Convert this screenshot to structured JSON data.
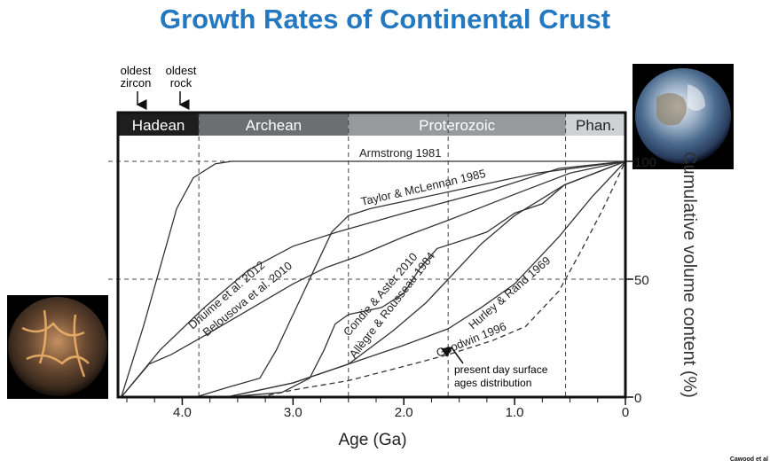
{
  "title": "Growth Rates of Continental Crust",
  "credit": "Cawood et al",
  "annotations": {
    "oldest_zircon": [
      "oldest",
      "zircon"
    ],
    "oldest_rock": [
      "oldest",
      "rock"
    ],
    "present_day": [
      "present day surface",
      "ages distribution"
    ]
  },
  "images": {
    "earth": "modern-earth-photo",
    "hadean": "hadean-earth-illustration"
  },
  "chart_data": {
    "type": "line",
    "title": "Growth Rates of Continental Crust",
    "xlabel": "Age (Ga)",
    "ylabel": "Cumulative volume content (%)",
    "xlim": [
      4.58,
      0
    ],
    "ylim": [
      0,
      100
    ],
    "x_ticks": [
      "4.0",
      "3.0",
      "2.0",
      "1.0",
      "0"
    ],
    "x_tick_values": [
      4.0,
      3.0,
      2.0,
      1.0,
      0
    ],
    "y_ticks": [
      "0",
      "50",
      "100"
    ],
    "y_tick_values": [
      0,
      50,
      100
    ],
    "grid": "dashed",
    "eras": [
      {
        "name": "Hadean",
        "from": 4.58,
        "to": 3.85,
        "color": "#1e1e1e"
      },
      {
        "name": "Archean",
        "from": 3.85,
        "to": 2.5,
        "color": "#6c6f70"
      },
      {
        "name": "Proterozoic",
        "from": 2.5,
        "to": 0.54,
        "color": "#979a9b"
      },
      {
        "name": "Phan.",
        "from": 0.54,
        "to": 0,
        "color": "#cfd1d2"
      }
    ],
    "vertical_gridlines": [
      3.85,
      2.5,
      1.6,
      0.54
    ],
    "series": [
      {
        "name": "Armstrong 1981",
        "dashed": false,
        "points": [
          [
            4.55,
            0
          ],
          [
            4.35,
            30
          ],
          [
            4.2,
            55
          ],
          [
            4.05,
            80
          ],
          [
            3.9,
            93
          ],
          [
            3.7,
            99
          ],
          [
            3.55,
            100
          ],
          [
            0,
            100
          ]
        ]
      },
      {
        "name": "Taylor & McLennan 1985",
        "dashed": false,
        "points": [
          [
            3.88,
            0
          ],
          [
            3.6,
            4
          ],
          [
            3.3,
            8
          ],
          [
            3.15,
            20
          ],
          [
            2.95,
            40
          ],
          [
            2.8,
            55
          ],
          [
            2.65,
            70
          ],
          [
            2.5,
            77
          ],
          [
            2.3,
            80
          ],
          [
            1.5,
            88
          ],
          [
            0.8,
            95
          ],
          [
            0,
            100
          ]
        ]
      },
      {
        "name": "Dhuime et al. 2012",
        "dashed": false,
        "points": [
          [
            4.55,
            0
          ],
          [
            4.2,
            20
          ],
          [
            3.8,
            38
          ],
          [
            3.4,
            54
          ],
          [
            3.0,
            64
          ],
          [
            2.6,
            70
          ],
          [
            2.0,
            78
          ],
          [
            1.2,
            88
          ],
          [
            0.6,
            97
          ],
          [
            0,
            100
          ]
        ]
      },
      {
        "name": "Belousova et al. 2010",
        "dashed": false,
        "points": [
          [
            4.55,
            0
          ],
          [
            4.3,
            14
          ],
          [
            4.1,
            18
          ],
          [
            3.8,
            26
          ],
          [
            3.4,
            37
          ],
          [
            3.0,
            48
          ],
          [
            2.7,
            55
          ],
          [
            2.4,
            60
          ],
          [
            2.0,
            68
          ],
          [
            1.6,
            75
          ],
          [
            1.0,
            86
          ],
          [
            0.5,
            95
          ],
          [
            0,
            100
          ]
        ]
      },
      {
        "name": "Condie & Aster 2010",
        "dashed": false,
        "points": [
          [
            3.6,
            0
          ],
          [
            3.1,
            2
          ],
          [
            2.85,
            8
          ],
          [
            2.72,
            20
          ],
          [
            2.62,
            31
          ],
          [
            2.5,
            35
          ],
          [
            2.2,
            38
          ],
          [
            2.0,
            44
          ],
          [
            1.85,
            55
          ],
          [
            1.7,
            63
          ],
          [
            1.5,
            66
          ],
          [
            1.25,
            70
          ],
          [
            1.0,
            78
          ],
          [
            0.75,
            82
          ],
          [
            0.55,
            90
          ],
          [
            0,
            100
          ]
        ]
      },
      {
        "name": "Allègre & Rousseau 1984",
        "dashed": false,
        "points": [
          [
            3.6,
            0
          ],
          [
            3.0,
            6
          ],
          [
            2.5,
            14
          ],
          [
            2.1,
            28
          ],
          [
            1.8,
            40
          ],
          [
            1.6,
            50
          ],
          [
            1.3,
            65
          ],
          [
            1.0,
            77
          ],
          [
            0.55,
            90
          ],
          [
            0,
            100
          ]
        ]
      },
      {
        "name": "Hurley & Rand 1969",
        "dashed": false,
        "points": [
          [
            3.6,
            0
          ],
          [
            3.0,
            6
          ],
          [
            2.5,
            14
          ],
          [
            2.0,
            22
          ],
          [
            1.6,
            29
          ],
          [
            1.3,
            38
          ],
          [
            1.0,
            48
          ],
          [
            0.6,
            68
          ],
          [
            0.3,
            85
          ],
          [
            0,
            100
          ]
        ]
      },
      {
        "name": "Goodwin 1996",
        "dashed": true,
        "points": [
          [
            3.3,
            0
          ],
          [
            3.0,
            3
          ],
          [
            2.5,
            7
          ],
          [
            2.0,
            13
          ],
          [
            1.6,
            18
          ],
          [
            1.2,
            24
          ],
          [
            0.9,
            30
          ],
          [
            0.6,
            45
          ],
          [
            0.4,
            62
          ],
          [
            0.2,
            80
          ],
          [
            0,
            100
          ]
        ]
      }
    ]
  }
}
